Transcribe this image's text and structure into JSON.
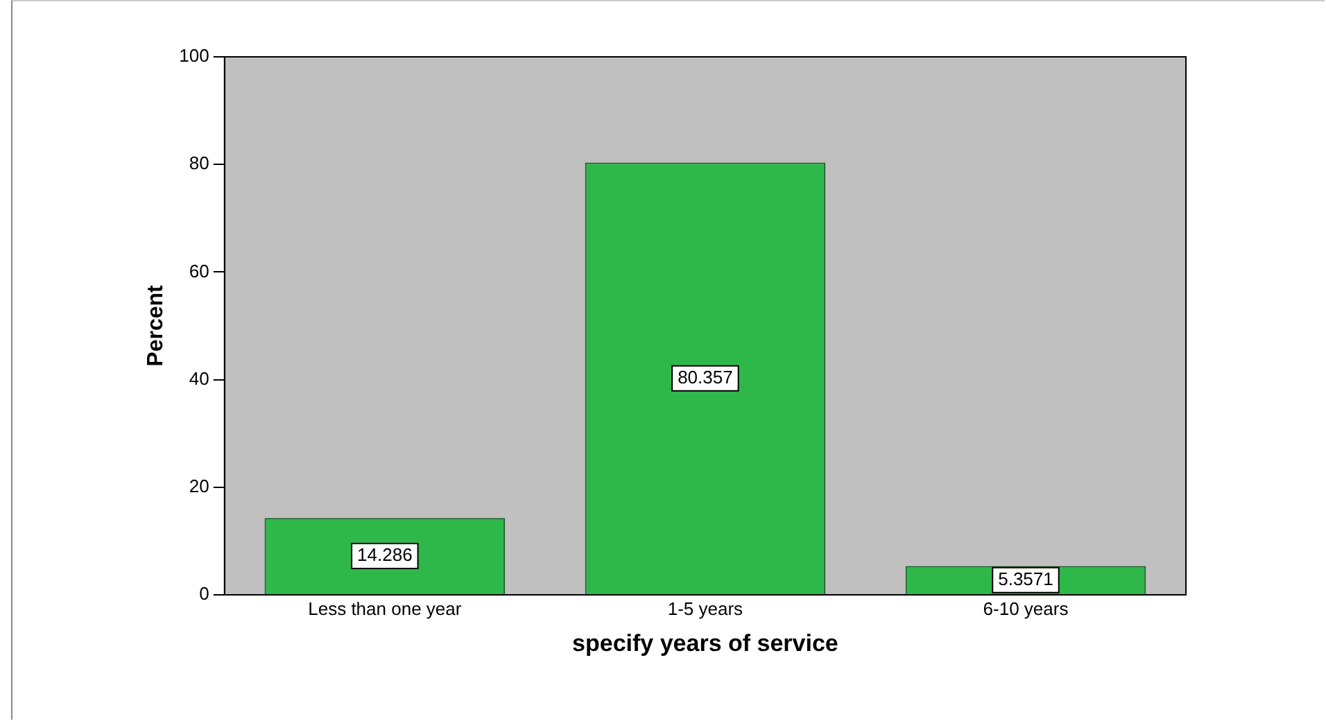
{
  "chart_data": {
    "type": "bar",
    "xlabel": "specify years of service",
    "ylabel": "Percent",
    "categories": [
      "Less than one year",
      "1-5 years",
      "6-10 years"
    ],
    "values": [
      14.286,
      80.357,
      5.3571
    ],
    "color": "#2fb84a",
    "ylim": [
      0,
      100
    ],
    "yticks": [
      0,
      20,
      40,
      60,
      80,
      100
    ],
    "data_labels": true,
    "grid": false,
    "legend": false
  }
}
